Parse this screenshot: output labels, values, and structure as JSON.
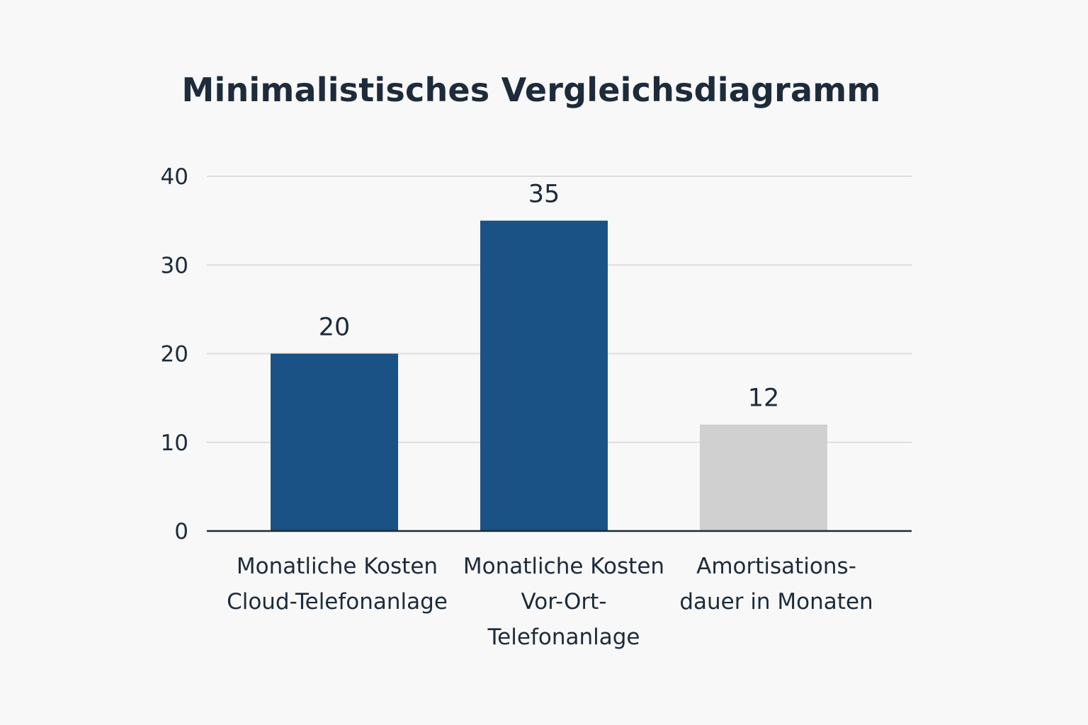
{
  "chart_data": {
    "type": "bar",
    "title": "Minimalistisches Vergleichsdiagramm",
    "xlabel": "",
    "ylabel": "",
    "ylim": [
      0,
      40
    ],
    "yticks": [
      0,
      10,
      20,
      30,
      40
    ],
    "grid": true,
    "categories": [
      [
        "Monatliche Kosten",
        "Cloud-Telefonanlage"
      ],
      [
        "Monatliche Kosten",
        "Vor-Ort-",
        "Telefonanlage"
      ],
      [
        "Amortisations-",
        "dauer in Monaten"
      ]
    ],
    "values": [
      20,
      35,
      12
    ],
    "bar_colors": [
      "#1a5285",
      "#1a5285",
      "#d0d0d0"
    ],
    "grid_color": "#dddddd",
    "axis_color": "#1d2b3a"
  }
}
